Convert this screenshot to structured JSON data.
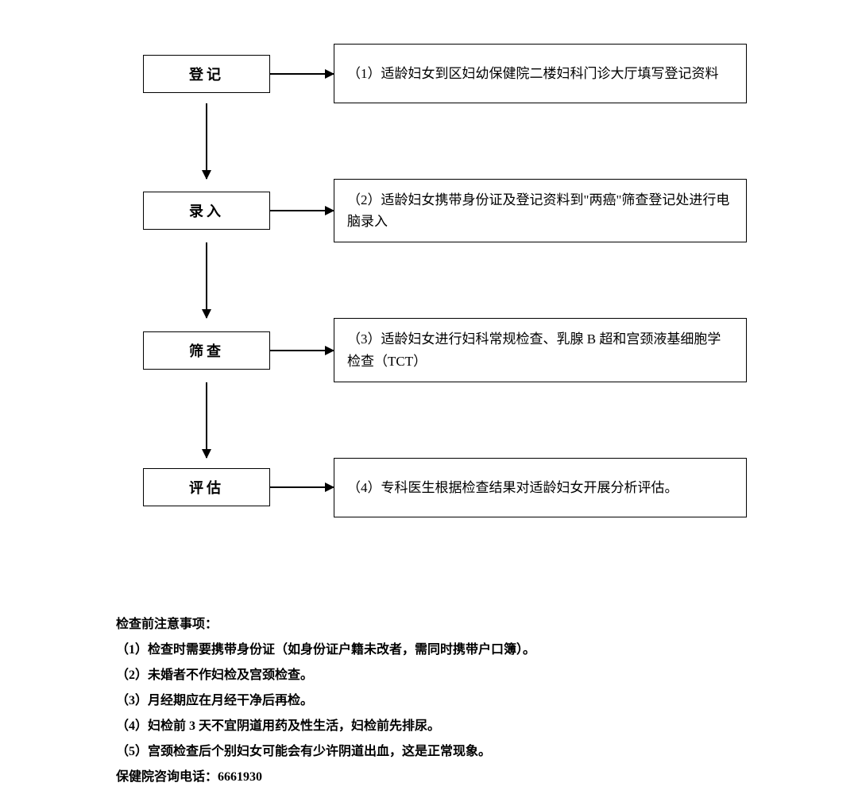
{
  "flowchart": {
    "type": "flowchart",
    "border_color": "#000000",
    "background_color": "#ffffff",
    "font_family": "SimSun",
    "step_font_size": 18,
    "desc_font_size": 17,
    "steps": [
      {
        "label": "登记",
        "desc": "（1）适龄妇女到区妇幼保健院二楼妇科门诊大厅填写登记资料"
      },
      {
        "label": "录入",
        "desc": "（2）适龄妇女携带身份证及登记资料到\"两癌\"筛查登记处进行电脑录入"
      },
      {
        "label": "筛查",
        "desc": "（3）适龄妇女进行妇科常规检查、乳腺 B 超和宫颈液基细胞学检查（TCT）"
      },
      {
        "label": "评估",
        "desc": "（4）专科医生根据检查结果对适龄妇女开展分析评估。"
      }
    ]
  },
  "notes": {
    "title": "检查前注意事项：",
    "items": [
      "（1）检查时需要携带身份证（如身份证户籍未改者，需同时携带户口簿）。",
      "（2）未婚者不作妇检及宫颈检查。",
      "（3）月经期应在月经干净后再检。",
      "（4）妇检前 3 天不宜阴道用药及性生活，妇检前先排尿。",
      "（5）宫颈检查后个别妇女可能会有少许阴道出血，这是正常现象。"
    ],
    "contact": "保健院咨询电话：6661930",
    "font_size": 16,
    "font_weight": "bold"
  }
}
